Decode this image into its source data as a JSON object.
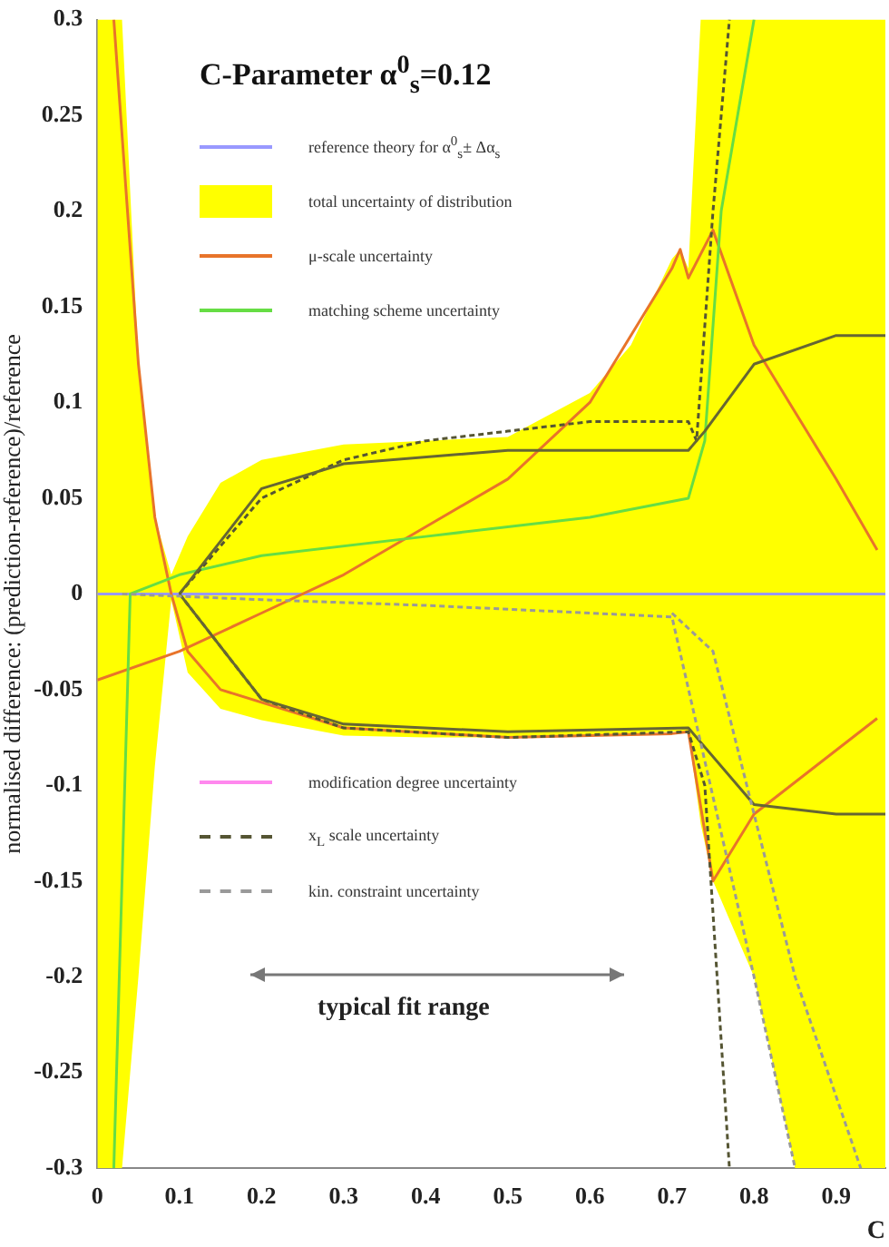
{
  "chart_data": {
    "type": "line",
    "title": "C-Parameter α$^{0}$$_{s}$=0.12",
    "xlabel": "C",
    "ylabel": "normalised difference: (prediction-reference)/reference",
    "xlim": [
      0,
      0.96
    ],
    "xticks": [
      0,
      0.1,
      0.2,
      0.3,
      0.4,
      0.5,
      0.6,
      0.7,
      0.8,
      0.9
    ],
    "ylim": [
      -0.3,
      0.3
    ],
    "yticks": [
      -0.3,
      -0.25,
      -0.2,
      -0.15,
      -0.1,
      -0.05,
      0,
      0.05,
      0.1,
      0.15,
      0.2,
      0.25,
      0.3
    ],
    "grid": false,
    "legend": "top left",
    "annotations": [
      "typical fit range"
    ],
    "series": [
      {
        "name": "reference theory for α$^{0}$$_{s}$± Δα$_{s}$",
        "color": "#9999ff",
        "line_style": "solid",
        "x": [
          0,
          0.96
        ],
        "values": [
          0,
          0
        ]
      },
      {
        "name": "total uncertainty of distribution",
        "type": "line",
        "color": "#ffff00",
        "x": [
          0,
          0.03,
          0.05,
          0.07,
          0.09,
          0.11,
          0.15,
          0.2,
          0.3,
          0.4,
          0.5,
          0.6,
          0.65,
          0.7,
          0.71,
          0.72,
          0.735,
          0.75,
          0.8,
          0.85,
          0.9,
          0.96
        ],
        "values": [
          null,
          null,
          null,
          null,
          null,
          null,
          null,
          null,
          null,
          null,
          null,
          null,
          null,
          null,
          null,
          null,
          null,
          null,
          null,
          null,
          null,
          null
        ],
        "upper": [
          0.3,
          0.3,
          0.12,
          0.04,
          0.01,
          0.03,
          0.058,
          0.07,
          0.078,
          0.08,
          0.082,
          0.105,
          0.13,
          0.175,
          0.18,
          0.17,
          0.3,
          0.3,
          0.3,
          0.3,
          0.3,
          0.3
        ],
        "lower": [
          -0.3,
          -0.3,
          -0.2,
          -0.09,
          -0.003,
          -0.041,
          -0.06,
          -0.066,
          -0.074,
          -0.075,
          -0.075,
          -0.074,
          -0.073,
          -0.072,
          -0.072,
          -0.072,
          -0.12,
          -0.15,
          -0.2,
          -0.3,
          -0.3,
          -0.3
        ]
      },
      {
        "name": "μ-scale uncertainty",
        "type": "line",
        "color": "#e8742a",
        "line_style": "solid",
        "x": [
          0,
          0.1,
          0.2,
          0.3,
          0.4,
          0.5,
          0.6,
          0.7,
          0.71,
          0.72,
          0.75,
          0.8,
          0.9,
          0.95
        ],
        "values": [
          -0.045,
          -0.03,
          -0.01,
          0.01,
          0.035,
          0.06,
          0.1,
          0.17,
          0.18,
          0.165,
          0.19,
          0.13,
          0.06,
          0.023
        ]
      },
      {
        "type": "line",
        "color": "#e8742a",
        "line_style": "solid",
        "x": [
          0.02,
          0.05,
          0.07,
          0.09,
          0.11,
          0.15,
          0.3,
          0.5,
          0.7,
          0.72,
          0.75,
          0.8,
          0.95
        ],
        "values": [
          0.3,
          0.12,
          0.04,
          0.0,
          -0.03,
          -0.05,
          -0.07,
          -0.075,
          -0.073,
          -0.072,
          -0.15,
          -0.115,
          -0.065
        ]
      },
      {
        "name": "matching scheme uncertainty",
        "type": "line",
        "color": "#66dd44",
        "line_style": "solid",
        "x": [
          0.02,
          0.04,
          0.1,
          0.2,
          0.4,
          0.6,
          0.72,
          0.74,
          0.76,
          0.8
        ],
        "values": [
          -0.3,
          0,
          0.01,
          0.02,
          0.03,
          0.04,
          0.05,
          0.08,
          0.2,
          0.3
        ]
      },
      {
        "name": "modification degree uncertainty",
        "type": "line",
        "color": "#ff88ee",
        "line_style": "solid"
      },
      {
        "name": "x$_{L}$ scale uncertainty",
        "type": "line",
        "color": "#555533",
        "line_style": "dashed",
        "x": [
          0.1,
          0.2,
          0.3,
          0.4,
          0.5,
          0.6,
          0.72,
          0.73,
          0.75,
          0.77
        ],
        "values": [
          0,
          0.05,
          0.07,
          0.08,
          0.085,
          0.09,
          0.09,
          0.08,
          0.2,
          0.3
        ]
      },
      {
        "type": "line",
        "color": "#555533",
        "line_style": "dashed",
        "x": [
          0.1,
          0.2,
          0.3,
          0.5,
          0.72,
          0.74,
          0.77
        ],
        "values": [
          0,
          -0.055,
          -0.07,
          -0.075,
          -0.072,
          -0.1,
          -0.3
        ]
      },
      {
        "type": "line",
        "color": "#666633",
        "line_style": "solid",
        "x": [
          0.1,
          0.2,
          0.3,
          0.5,
          0.72,
          0.74,
          0.8,
          0.9,
          0.96
        ],
        "values": [
          0,
          0.055,
          0.068,
          0.075,
          0.075,
          0.085,
          0.12,
          0.135,
          0.135
        ]
      },
      {
        "type": "line",
        "color": "#666633",
        "line_style": "solid",
        "x": [
          0.1,
          0.2,
          0.3,
          0.5,
          0.72,
          0.8,
          0.9,
          0.96
        ],
        "values": [
          0,
          -0.055,
          -0.068,
          -0.072,
          -0.07,
          -0.11,
          -0.115,
          -0.115
        ]
      },
      {
        "name": "kin. constraint uncertainty",
        "type": "line",
        "color": "#999999",
        "line_style": "dashed",
        "x": [
          0.03,
          0.2,
          0.4,
          0.6,
          0.7,
          0.8,
          0.85
        ],
        "values": [
          0,
          -0.003,
          -0.006,
          -0.01,
          -0.012,
          -0.2,
          -0.3
        ]
      },
      {
        "type": "line",
        "color": "#999999",
        "line_style": "dashed",
        "x": [
          0.7,
          0.75,
          0.85,
          0.93
        ],
        "values": [
          -0.01,
          -0.03,
          -0.2,
          -0.3
        ]
      }
    ]
  }
}
